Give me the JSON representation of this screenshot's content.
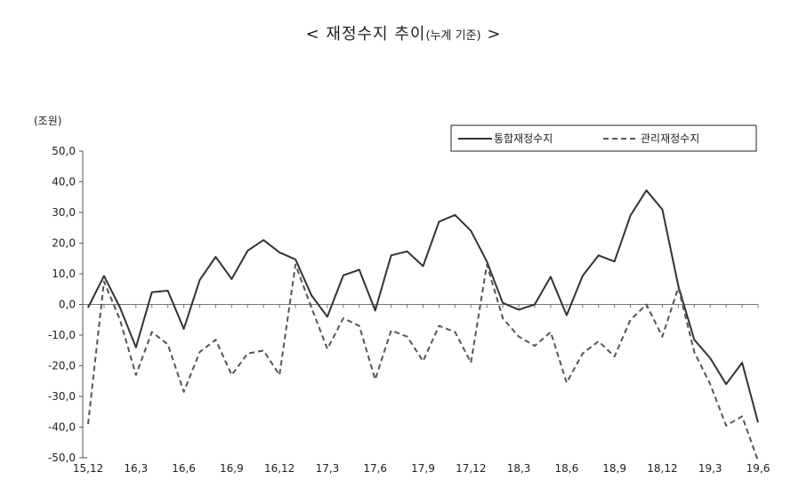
{
  "title": {
    "main": "< 재정수지 추이",
    "sub": "(누계 기준)",
    "end": " >"
  },
  "chart_data": {
    "type": "line",
    "unit_label": "(조원)",
    "ylim": [
      -50,
      50
    ],
    "yticks": [
      "50,0",
      "40,0",
      "30,0",
      "20,0",
      "10,0",
      "0,0",
      "-10,0",
      "-20,0",
      "-30,0",
      "-40,0",
      "-50,0"
    ],
    "xtick_labels": [
      "15,12",
      "16,3",
      "16,6",
      "16,9",
      "16,12",
      "17,3",
      "17,6",
      "17,9",
      "17,12",
      "18,3",
      "18,6",
      "18,9",
      "18,12",
      "19,3",
      "19,6"
    ],
    "grid": false,
    "legend_position": "top-right",
    "x": [
      "15,12",
      "16,1",
      "16,2",
      "16,3",
      "16,4",
      "16,5",
      "16,6",
      "16,7",
      "16,8",
      "16,9",
      "16,10",
      "16,11",
      "16,12",
      "17,1",
      "17,2",
      "17,3",
      "17,4",
      "17,5",
      "17,6",
      "17,7",
      "17,8",
      "17,9",
      "17,10",
      "17,11",
      "17,12",
      "18,1",
      "18,2",
      "18,3",
      "18,4",
      "18,5",
      "18,6",
      "18,7",
      "18,8",
      "18,9",
      "18,10",
      "18,11",
      "18,12",
      "19,1",
      "19,2",
      "19,3",
      "19,4",
      "19,5",
      "19,6"
    ],
    "series": [
      {
        "name": "통합재정수지",
        "style": "solid",
        "color": "#333333",
        "values": [
          -1.0,
          9.3,
          -1.0,
          -14.0,
          4.0,
          4.5,
          -8.0,
          8.0,
          15.5,
          8.3,
          17.5,
          21.0,
          17.0,
          14.7,
          3.0,
          -4.0,
          9.5,
          11.3,
          -2.0,
          16.0,
          17.3,
          12.5,
          27.0,
          29.2,
          24.0,
          14.0,
          0.5,
          -1.7,
          0.0,
          9.0,
          -3.5,
          9.3,
          16.0,
          14.0,
          29.0,
          37.2,
          31.0,
          6.0,
          -11.5,
          -17.5,
          -26.0,
          -19.0,
          -38.5
        ]
      },
      {
        "name": "관리재정수지",
        "style": "dashed",
        "color": "#555555",
        "values": [
          -39.0,
          7.5,
          -5.0,
          -23.0,
          -9.0,
          -13.0,
          -28.5,
          -15.5,
          -11.5,
          -23.0,
          -16.0,
          -15.0,
          -23.0,
          13.0,
          -1.0,
          -14.5,
          -4.5,
          -7.0,
          -24.5,
          -8.5,
          -10.5,
          -18.5,
          -7.0,
          -9.0,
          -19.0,
          13.0,
          -4.5,
          -10.5,
          -13.5,
          -9.0,
          -25.5,
          -16.0,
          -12.0,
          -17.0,
          -5.0,
          0.0,
          -10.5,
          5.5,
          -15.5,
          -26.0,
          -39.5,
          -36.5,
          -51.0
        ]
      }
    ]
  }
}
